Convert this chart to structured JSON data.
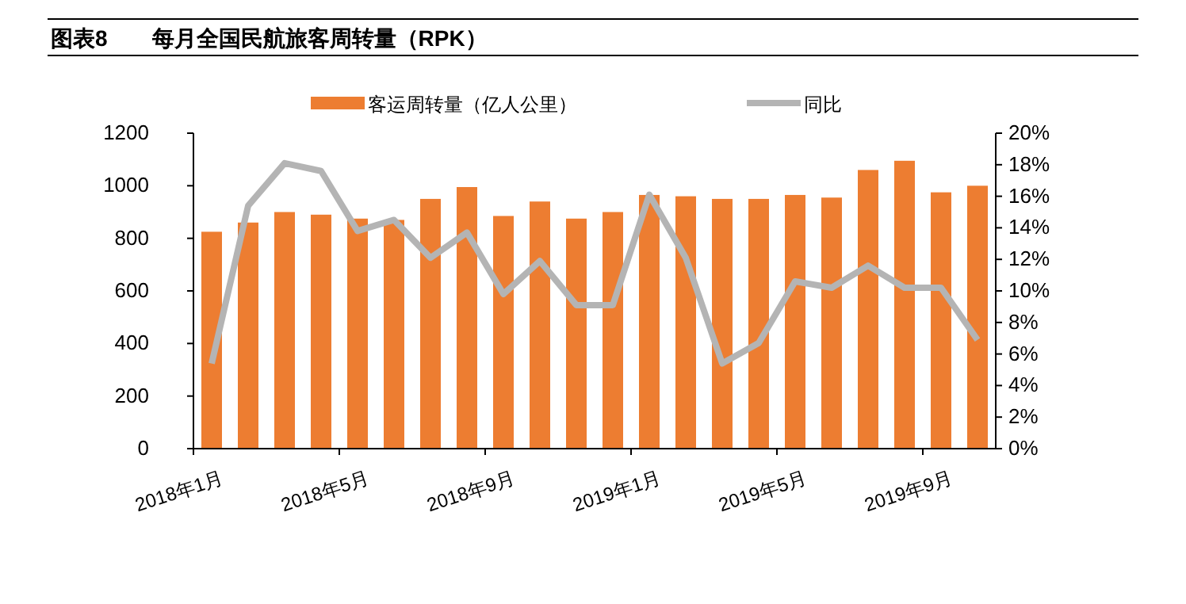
{
  "chart_data": {
    "type": "bar",
    "title": "图表8　　每月全国民航旅客周转量（RPK）",
    "categories": [
      "2018年1月",
      null,
      null,
      null,
      "2018年5月",
      null,
      null,
      null,
      "2018年9月",
      null,
      null,
      null,
      "2019年1月",
      null,
      null,
      null,
      "2019年5月",
      null,
      null,
      null,
      "2019年9月",
      null
    ],
    "series": [
      {
        "name": "客运周转量（亿人公里）",
        "color": "#ed7d31",
        "values": [
          825,
          860,
          900,
          890,
          875,
          870,
          950,
          995,
          885,
          940,
          875,
          900,
          965,
          960,
          950,
          950,
          965,
          955,
          1060,
          1095,
          975,
          1000
        ]
      },
      {
        "name": "同比",
        "type": "line",
        "axis": "y2",
        "color": "#b4b4b4",
        "marker": "none",
        "values": [
          5.4,
          15.4,
          18.1,
          17.6,
          13.8,
          14.5,
          12.1,
          13.7,
          9.8,
          11.9,
          9.1,
          9.1,
          16.1,
          12.1,
          5.4,
          6.7,
          10.6,
          10.2,
          11.6,
          10.2,
          10.2,
          6.9
        ]
      }
    ],
    "ylim": [
      0,
      1200
    ],
    "yticks": [
      0,
      200,
      400,
      600,
      800,
      1000,
      1200
    ],
    "y2lim": [
      0,
      20
    ],
    "y2ticks": [
      {
        "value": 0,
        "label": "0%"
      },
      {
        "value": 2,
        "label": "2%"
      },
      {
        "value": 4,
        "label": "4%"
      },
      {
        "value": 6,
        "label": "6%"
      },
      {
        "value": 8,
        "label": "8%"
      },
      {
        "value": 10,
        "label": "10%"
      },
      {
        "value": 12,
        "label": "12%"
      },
      {
        "value": 14,
        "label": "14%"
      },
      {
        "value": 16,
        "label": "16%"
      },
      {
        "value": 18,
        "label": "18%"
      },
      {
        "value": 20,
        "label": "20%"
      }
    ],
    "legend": "top",
    "grid": false
  }
}
